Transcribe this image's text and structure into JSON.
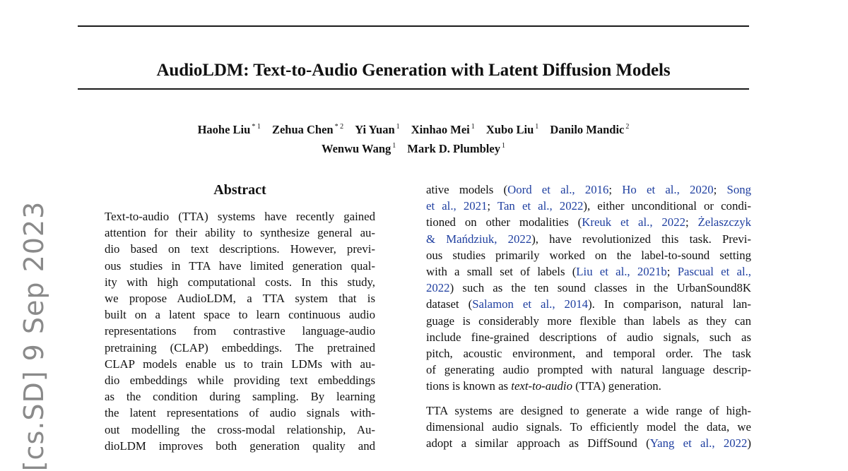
{
  "arxiv_stamp": "[cs.SD]  9 Sep 2023",
  "title": "AudioLDM: Text-to-Audio Generation with Latent Diffusion Models",
  "authors": {
    "row1": [
      {
        "name": "Haohe Liu",
        "aff": "* 1"
      },
      {
        "name": "Zehua Chen",
        "aff": "* 2"
      },
      {
        "name": "Yi Yuan",
        "aff": "1"
      },
      {
        "name": "Xinhao Mei",
        "aff": "1"
      },
      {
        "name": "Xubo Liu",
        "aff": "1"
      },
      {
        "name": "Danilo Mandic",
        "aff": "2"
      }
    ],
    "row2": [
      {
        "name": "Wenwu Wang",
        "aff": "1"
      },
      {
        "name": "Mark D. Plumbley",
        "aff": "1"
      }
    ]
  },
  "abstract": {
    "heading": "Abstract",
    "lines": [
      "Text-to-audio (TTA) systems have recently gained",
      "attention for their ability to synthesize general au-",
      "dio based on text descriptions. However, previ-",
      "ous studies in TTA have limited generation qual-",
      "ity with high computational costs. In this study,",
      "we propose AudioLDM, a TTA system that is",
      "built on a latent space to learn continuous audio",
      "representations from contrastive language-audio",
      "pretraining (CLAP) embeddings. The pretrained",
      "CLAP models enable us to train LDMs with au-",
      "dio embeddings while providing text embeddings",
      "as the condition during sampling. By learning",
      "the latent representations of audio signals with-",
      "out modelling the cross-modal relationship, Au-",
      "dioLDM improves both generation quality and"
    ]
  },
  "intro": {
    "p1": {
      "l01_a": "ative models (",
      "l01_c1": "Oord et al., 2016",
      "l01_b": "; ",
      "l01_c2": "Ho et al., 2020",
      "l01_c": "; ",
      "l01_c3": "Song",
      "l02_c3": "et al., 2021",
      "l02_a": "; ",
      "l02_c4": "Tan et al., 2022",
      "l02_b": "), either unconditional or condi-",
      "l03_a": "tioned on other modalities (",
      "l03_c1": "Kreuk et al., 2022",
      "l03_b": "; ",
      "l03_c2": "Żelaszczyk",
      "l04_c2": "& Mańdziuk, 2022",
      "l04_a": "), have revolutionized this task. Previ-",
      "l05": "ous studies primarily worked on the label-to-sound setting",
      "l06_a": "with a small set of labels (",
      "l06_c1": "Liu et al., 2021b",
      "l06_b": "; ",
      "l06_c2": "Pascual et al.,",
      "l07_c2": "2022",
      "l07_a": ") such as the ten sound classes in the UrbanSound8K",
      "l08_a": "dataset (",
      "l08_c1": "Salamon et al., 2014",
      "l08_b": "). In comparison, natural lan-",
      "l09": "guage is considerably more flexible than labels as they can",
      "l10": "include fine-grained descriptions of audio signals, such as",
      "l11": "pitch, acoustic environment, and temporal order. The task",
      "l12": "of generating audio prompted with natural language descrip-",
      "l13_a": "tions is known as ",
      "l13_em": "text-to-audio",
      "l13_b": " (TTA) generation."
    },
    "p2": {
      "l01": "TTA systems are designed to generate a wide range of high-",
      "l02": "dimensional audio signals. To efficiently model the data, we",
      "l03_a": "adopt a similar approach as DiffSound (",
      "l03_c1": "Yang et al., 2022",
      "l03_b": ")"
    }
  }
}
